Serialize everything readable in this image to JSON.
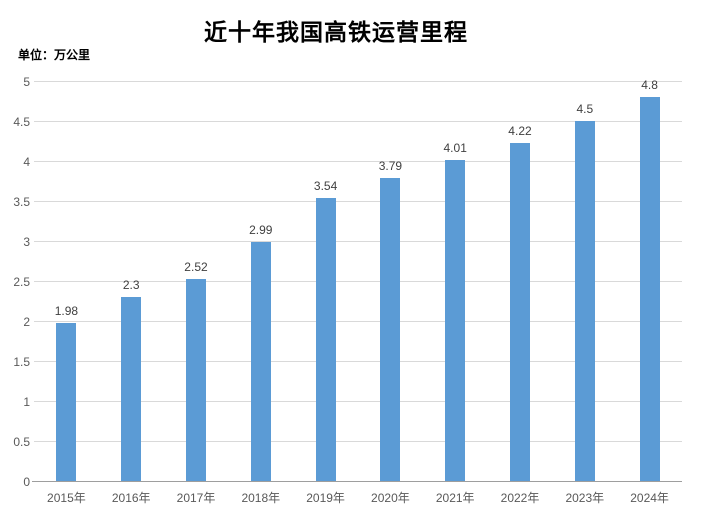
{
  "chart_data": {
    "type": "bar",
    "title": "近十年我国高铁运营里程",
    "unit_label": "单位：万公里",
    "categories": [
      "2015年",
      "2016年",
      "2017年",
      "2018年",
      "2019年",
      "2020年",
      "2021年",
      "2022年",
      "2023年",
      "2024年"
    ],
    "values": [
      1.98,
      2.3,
      2.52,
      2.99,
      3.54,
      3.79,
      4.01,
      4.22,
      4.5,
      4.8
    ],
    "value_labels": [
      "1.98",
      "2.3",
      "2.52",
      "2.99",
      "3.54",
      "3.79",
      "4.01",
      "4.22",
      "4.5",
      "4.8"
    ],
    "xlabel": "",
    "ylabel": "",
    "ylim": [
      0,
      5
    ],
    "ytick_step": 0.5,
    "yticks": [
      "0",
      "0.5",
      "1",
      "1.5",
      "2",
      "2.5",
      "3",
      "3.5",
      "4",
      "4.5",
      "5"
    ],
    "grid": true,
    "legend": "none",
    "colors": {
      "bar": "#5B9BD5",
      "gridline": "#D9D9D9",
      "axis_line": "#9E9E9E",
      "axis_text": "#595959",
      "data_label_text": "#404040",
      "title_text": "#000000",
      "background": "#FFFFFF"
    }
  }
}
